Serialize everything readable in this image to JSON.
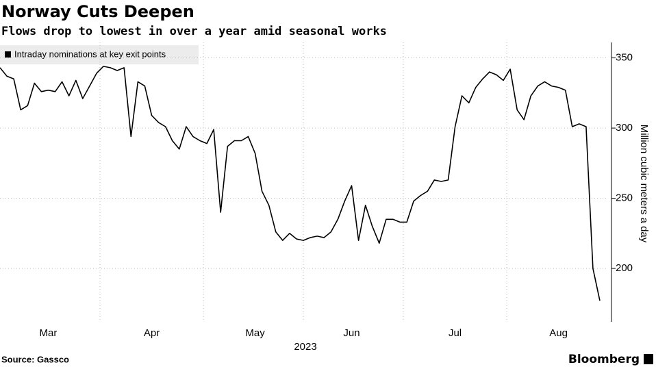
{
  "chart_data": {
    "type": "line",
    "title": "Norway Cuts Deepen",
    "subtitle": "Flows drop to lowest in over a year amid seasonal works",
    "categories": [
      null,
      null,
      null,
      null,
      null,
      null,
      null,
      "Mar",
      null,
      null,
      null,
      null,
      null,
      null,
      null,
      null,
      null,
      null,
      null,
      null,
      null,
      null,
      "Apr",
      null,
      null,
      null,
      null,
      null,
      null,
      null,
      null,
      null,
      null,
      null,
      null,
      null,
      null,
      "May",
      null,
      null,
      null,
      null,
      null,
      null,
      null,
      null,
      null,
      null,
      null,
      null,
      null,
      "Jun",
      null,
      null,
      null,
      null,
      null,
      null,
      null,
      null,
      null,
      null,
      null,
      null,
      null,
      null,
      "Jul",
      null,
      null,
      null,
      null,
      null,
      null,
      null,
      null,
      null,
      null,
      null,
      null,
      null,
      null,
      "Aug",
      null,
      null,
      null,
      null,
      null,
      null
    ],
    "series": [
      {
        "name": "Intraday nominations at key exit points",
        "color": "#000000",
        "values": [
          343,
          337,
          335,
          313,
          316,
          332,
          326,
          327,
          326,
          333,
          323,
          334,
          321,
          330,
          339,
          344,
          343,
          341,
          343,
          294,
          333,
          330,
          309,
          304,
          301,
          291,
          285,
          301,
          294,
          291,
          289,
          299,
          240,
          287,
          291,
          291,
          294,
          282,
          255,
          245,
          226,
          220,
          225,
          221,
          220,
          222,
          223,
          222,
          226,
          235,
          248,
          259,
          220,
          245,
          230,
          218,
          235,
          235,
          233,
          233,
          248,
          252,
          255,
          263,
          262,
          263,
          301,
          323,
          318,
          329,
          335,
          340,
          338,
          334,
          342,
          313,
          306,
          323,
          330,
          333,
          330,
          329,
          327,
          301,
          303,
          301,
          200,
          177
        ]
      }
    ],
    "xlabel": "2023",
    "ylabel": "Million cubic meters a day",
    "ylim": [
      162,
      361
    ],
    "yticks": [
      200,
      250,
      300,
      350
    ],
    "grid": true,
    "legend": "top-left",
    "source": "Source: Gassco",
    "brand": "Bloomberg"
  }
}
